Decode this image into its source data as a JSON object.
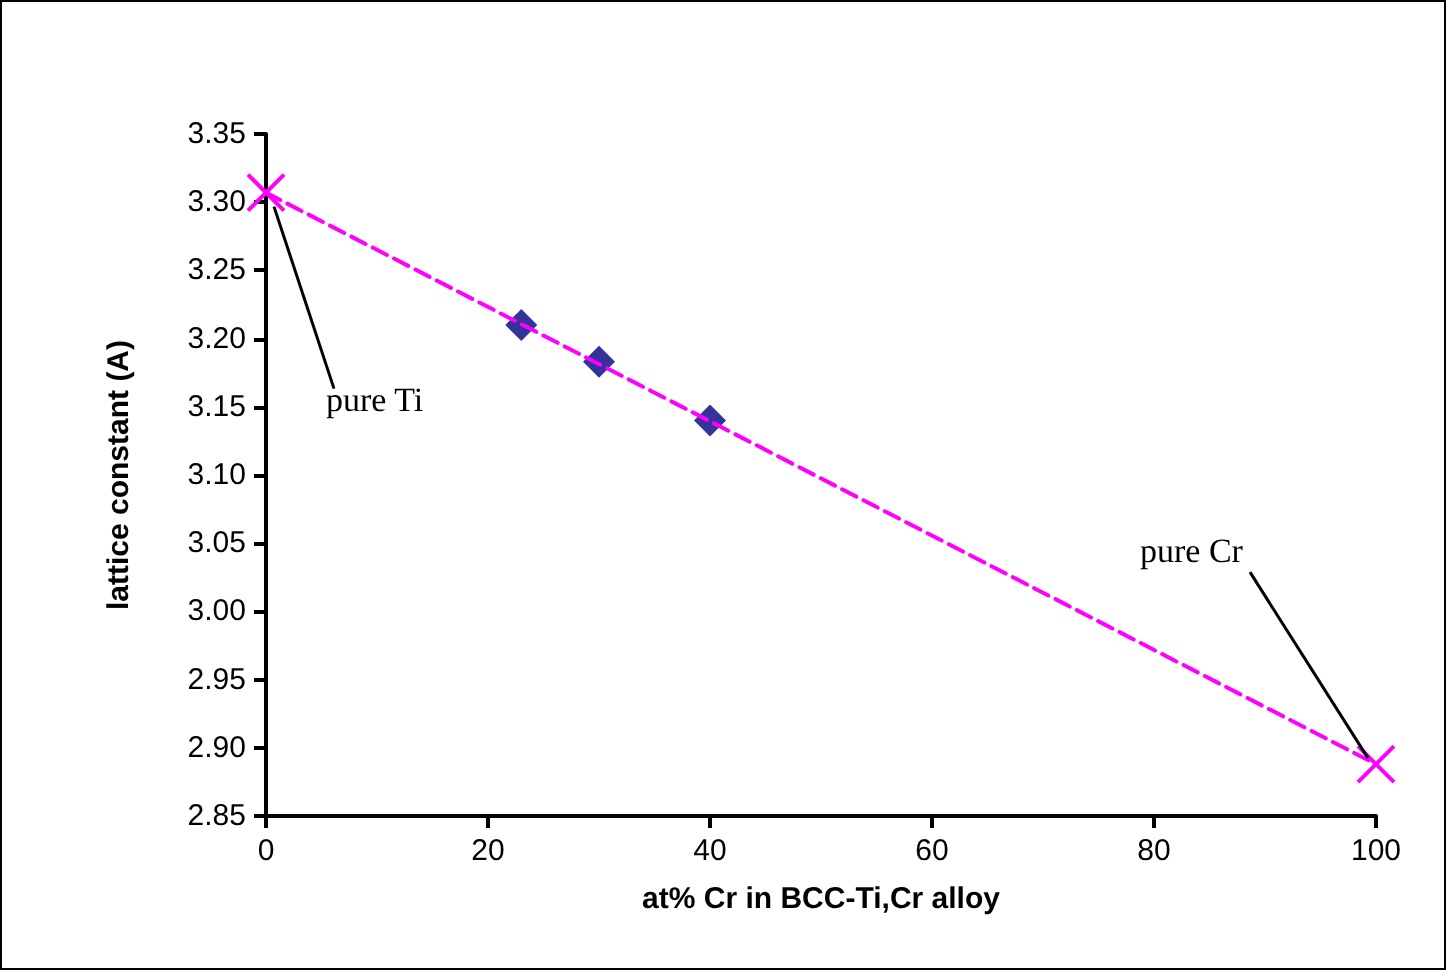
{
  "chart_data": {
    "type": "scatter",
    "xlabel": "at% Cr in BCC-Ti,Cr alloy",
    "ylabel": "lattice constant (A)",
    "xlim": [
      0,
      100
    ],
    "xticks": [
      0,
      20,
      40,
      60,
      80,
      100
    ],
    "ylim": [
      2.85,
      3.35
    ],
    "yticks": [
      {
        "value": 2.85,
        "label": "2.85"
      },
      {
        "value": 2.9,
        "label": "2.90"
      },
      {
        "value": 2.95,
        "label": "2.95"
      },
      {
        "value": 3.0,
        "label": "3.00"
      },
      {
        "value": 3.05,
        "label": "3.05"
      },
      {
        "value": 3.1,
        "label": "3.10"
      },
      {
        "value": 3.15,
        "label": "3.15"
      },
      {
        "value": 3.2,
        "label": "3.20"
      },
      {
        "value": 3.25,
        "label": "3.25"
      },
      {
        "value": 3.3,
        "label": "3.30"
      },
      {
        "value": 3.35,
        "label": "3.35"
      }
    ],
    "grid": false,
    "series": [
      {
        "type": "line",
        "color": "#ff00ff",
        "x": [
          0,
          100
        ],
        "values": [
          3.307,
          2.888
        ],
        "marker": "cross",
        "line_style": "dashed"
      },
      {
        "color": "#000080",
        "x": [
          23,
          30,
          40
        ],
        "values": [
          3.21,
          3.183,
          3.14
        ],
        "marker": "diamond"
      }
    ],
    "annotations": [
      {
        "text": "pure Ti",
        "x": 0,
        "y": 3.307
      },
      {
        "text": "pure Cr",
        "x": 100,
        "y": 2.888
      }
    ]
  }
}
